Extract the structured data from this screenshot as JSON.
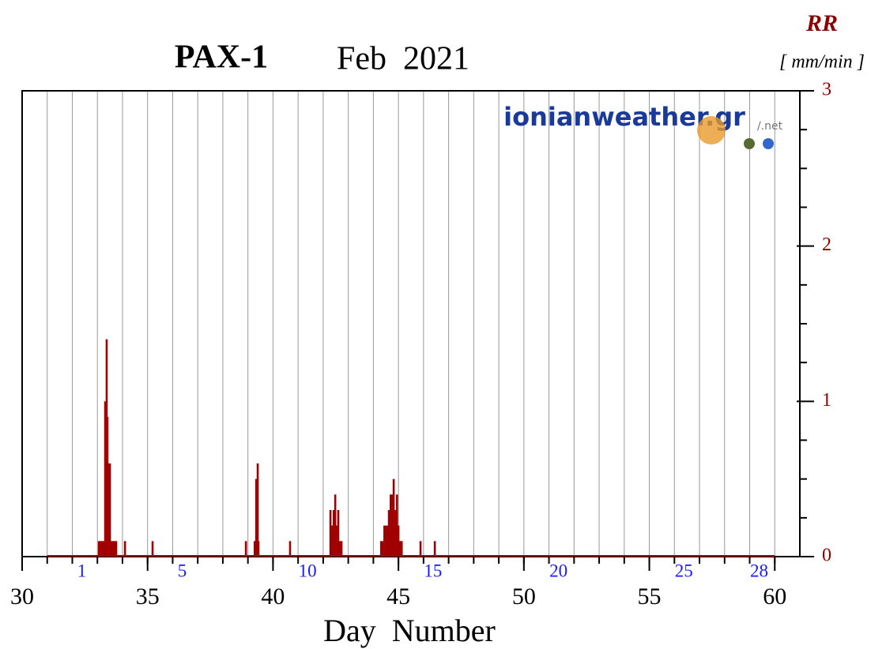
{
  "chart_data": {
    "type": "bar",
    "title": "PAX-1",
    "subtitle": "Feb  2021",
    "y_label": "RR",
    "y_unit": "[ mm/min ]",
    "x_label": "Day  Number",
    "watermark": "ionianweather.gr",
    "watermark_suffix": "/.net",
    "color": "#a00000",
    "x": [
      33.06,
      33.12,
      33.18,
      33.25,
      33.31,
      33.37,
      33.4,
      33.47,
      33.5,
      33.56,
      33.62,
      33.69,
      33.75,
      34.1,
      35.2,
      38.92,
      39.27,
      39.33,
      39.39,
      39.42,
      40.68,
      42.29,
      42.35,
      42.42,
      42.48,
      42.54,
      42.6,
      42.67,
      42.73,
      44.31,
      44.37,
      44.44,
      44.5,
      44.56,
      44.62,
      44.69,
      44.75,
      44.81,
      44.87,
      44.94,
      45.0,
      45.06,
      45.13,
      45.88,
      46.45
    ],
    "values": [
      0.1,
      0.1,
      0.1,
      0.1,
      1.0,
      1.4,
      0.9,
      0.6,
      0.6,
      0.1,
      0.1,
      0.1,
      0.1,
      0.1,
      0.1,
      0.1,
      0.1,
      0.5,
      0.6,
      0.1,
      0.1,
      0.3,
      0.2,
      0.3,
      0.4,
      0.2,
      0.3,
      0.1,
      0.1,
      0.1,
      0.1,
      0.2,
      0.2,
      0.2,
      0.3,
      0.4,
      0.4,
      0.5,
      0.3,
      0.4,
      0.2,
      0.1,
      0.1,
      0.1,
      0.1
    ],
    "xlim": [
      30,
      61
    ],
    "xticks": [
      30,
      35,
      40,
      45,
      50,
      55,
      60
    ],
    "xminorticks": [
      31,
      32,
      33,
      34,
      35,
      36,
      37,
      38,
      39,
      40,
      41,
      42,
      43,
      44,
      45,
      46,
      47,
      48,
      49,
      50,
      51,
      52,
      53,
      54,
      55,
      56,
      57,
      58,
      59,
      60
    ],
    "x2ticks": [
      {
        "value": 32,
        "label": "1"
      },
      {
        "value": 36,
        "label": "5"
      },
      {
        "value": 41,
        "label": "10"
      },
      {
        "value": 46,
        "label": "15"
      },
      {
        "value": 51,
        "label": "20"
      },
      {
        "value": 56,
        "label": "25"
      },
      {
        "value": 59,
        "label": "28"
      }
    ],
    "ylim": [
      0,
      3
    ],
    "yticks": [
      0,
      1,
      2,
      3
    ],
    "yminorticks": [
      0.25,
      0.5,
      0.75,
      1.25,
      1.5,
      1.75,
      2.25,
      2.5,
      2.75
    ],
    "grid": true
  }
}
